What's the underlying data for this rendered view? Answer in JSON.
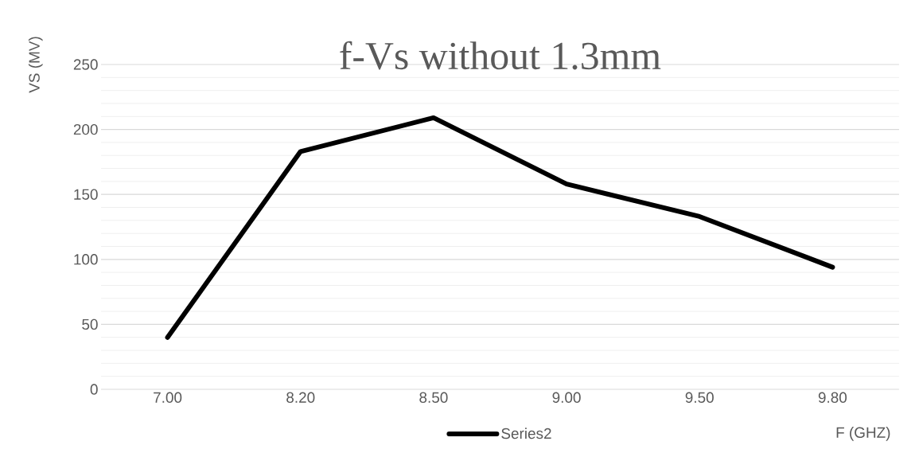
{
  "chart_data": {
    "type": "line",
    "title": "f-Vs without 1.3mm",
    "xlabel": "F (GHZ)",
    "ylabel": "VS (MV)",
    "categories": [
      "7.00",
      "8.20",
      "8.50",
      "9.00",
      "9.50",
      "9.80"
    ],
    "series": [
      {
        "name": "Series2",
        "color": "#000000",
        "values": [
          40,
          183,
          209,
          158,
          133,
          94
        ]
      }
    ],
    "ylim": [
      0,
      250
    ],
    "yticks": [
      0,
      50,
      100,
      150,
      200,
      250
    ],
    "grid": "y",
    "legend": "bottom",
    "marker": "none",
    "line_style": "solid"
  }
}
